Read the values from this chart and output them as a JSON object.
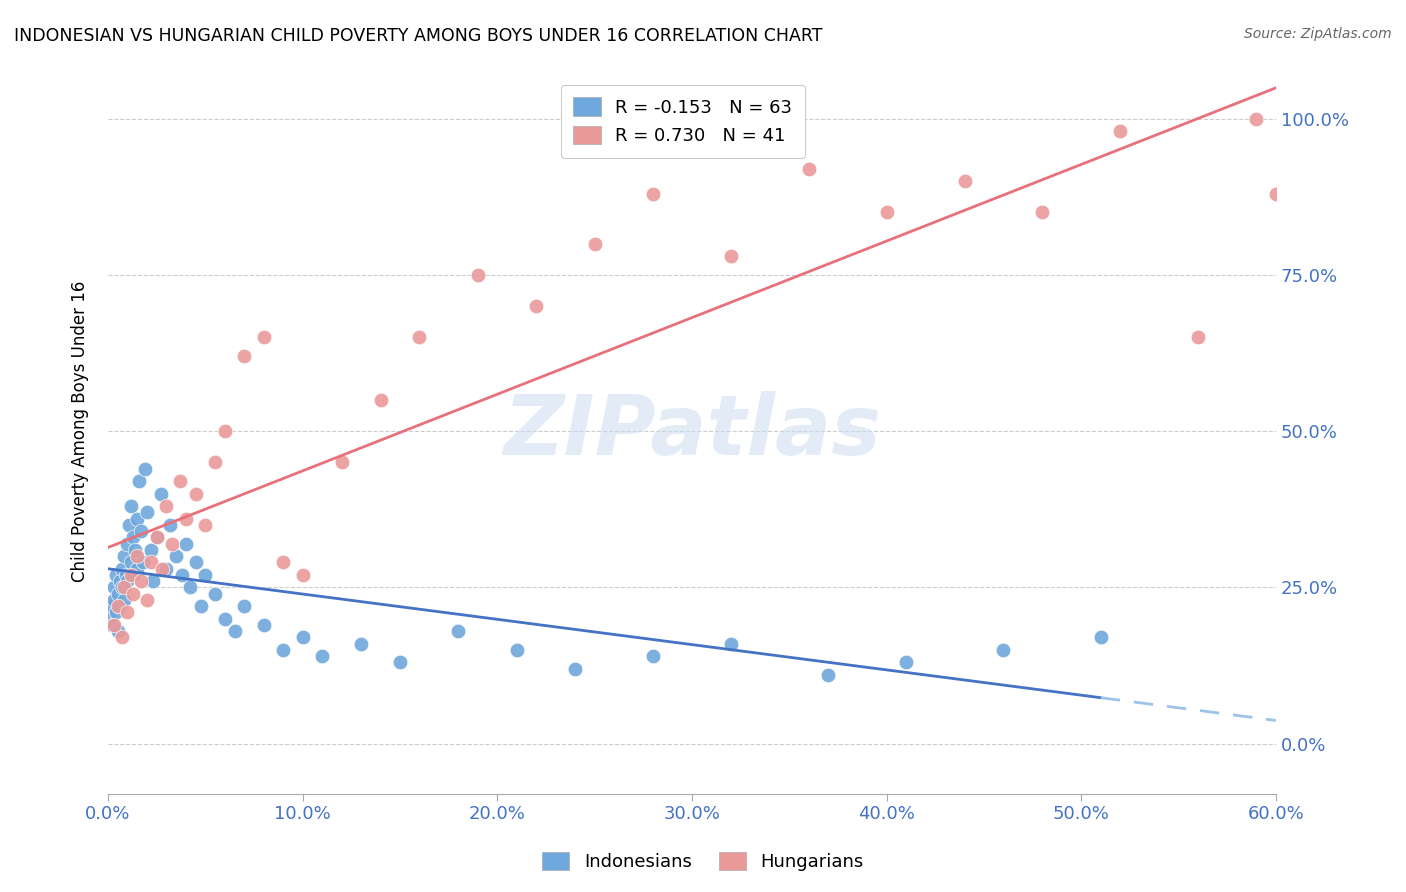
{
  "title": "INDONESIAN VS HUNGARIAN CHILD POVERTY AMONG BOYS UNDER 16 CORRELATION CHART",
  "source": "Source: ZipAtlas.com",
  "ylabel": "Child Poverty Among Boys Under 16",
  "xlim": [
    0.0,
    0.6
  ],
  "ylim": [
    -0.08,
    1.08
  ],
  "indonesian_color": "#6fa8dc",
  "hungarian_color": "#ea9999",
  "indonesian_line_color": "#4472c4",
  "indonesian_dash_color": "#9dc3e6",
  "hungarian_line_color": "#e8707a",
  "indonesian_R": -0.153,
  "indonesian_N": 63,
  "hungarian_R": 0.73,
  "hungarian_N": 41,
  "watermark": "ZIPatlas",
  "legend_labels": [
    "Indonesians",
    "Hungarians"
  ],
  "x_tick_vals": [
    0.0,
    0.1,
    0.2,
    0.3,
    0.4,
    0.5,
    0.6
  ],
  "x_tick_labels": [
    "0.0%",
    "10.0%",
    "20.0%",
    "30.0%",
    "40.0%",
    "50.0%",
    "60.0%"
  ],
  "y_tick_vals": [
    0.0,
    0.25,
    0.5,
    0.75,
    1.0
  ],
  "y_tick_labels": [
    "0.0%",
    "25.0%",
    "50.0%",
    "75.0%",
    "100.0%"
  ],
  "indonesian_x": [
    0.001,
    0.002,
    0.002,
    0.003,
    0.003,
    0.004,
    0.004,
    0.005,
    0.005,
    0.006,
    0.006,
    0.007,
    0.007,
    0.008,
    0.008,
    0.009,
    0.01,
    0.01,
    0.011,
    0.012,
    0.012,
    0.013,
    0.013,
    0.014,
    0.015,
    0.015,
    0.016,
    0.017,
    0.018,
    0.019,
    0.02,
    0.022,
    0.023,
    0.025,
    0.027,
    0.03,
    0.032,
    0.035,
    0.038,
    0.04,
    0.042,
    0.045,
    0.048,
    0.05,
    0.055,
    0.06,
    0.065,
    0.07,
    0.08,
    0.09,
    0.1,
    0.11,
    0.13,
    0.15,
    0.18,
    0.21,
    0.24,
    0.28,
    0.32,
    0.37,
    0.41,
    0.46,
    0.51
  ],
  "indonesian_y": [
    0.2,
    0.22,
    0.19,
    0.25,
    0.23,
    0.21,
    0.27,
    0.24,
    0.18,
    0.26,
    0.22,
    0.28,
    0.25,
    0.3,
    0.23,
    0.27,
    0.32,
    0.26,
    0.35,
    0.29,
    0.38,
    0.33,
    0.27,
    0.31,
    0.36,
    0.28,
    0.42,
    0.34,
    0.29,
    0.44,
    0.37,
    0.31,
    0.26,
    0.33,
    0.4,
    0.28,
    0.35,
    0.3,
    0.27,
    0.32,
    0.25,
    0.29,
    0.22,
    0.27,
    0.24,
    0.2,
    0.18,
    0.22,
    0.19,
    0.15,
    0.17,
    0.14,
    0.16,
    0.13,
    0.18,
    0.15,
    0.12,
    0.14,
    0.16,
    0.11,
    0.13,
    0.15,
    0.17
  ],
  "hungarian_x": [
    0.003,
    0.005,
    0.007,
    0.008,
    0.01,
    0.012,
    0.013,
    0.015,
    0.017,
    0.02,
    0.022,
    0.025,
    0.028,
    0.03,
    0.033,
    0.037,
    0.04,
    0.045,
    0.05,
    0.055,
    0.06,
    0.07,
    0.08,
    0.09,
    0.1,
    0.12,
    0.14,
    0.16,
    0.19,
    0.22,
    0.25,
    0.28,
    0.32,
    0.36,
    0.4,
    0.44,
    0.48,
    0.52,
    0.56,
    0.59,
    0.6
  ],
  "hungarian_y": [
    0.19,
    0.22,
    0.17,
    0.25,
    0.21,
    0.27,
    0.24,
    0.3,
    0.26,
    0.23,
    0.29,
    0.33,
    0.28,
    0.38,
    0.32,
    0.42,
    0.36,
    0.4,
    0.35,
    0.45,
    0.5,
    0.62,
    0.65,
    0.29,
    0.27,
    0.45,
    0.55,
    0.65,
    0.75,
    0.7,
    0.8,
    0.88,
    0.78,
    0.92,
    0.85,
    0.9,
    0.85,
    0.98,
    0.65,
    1.0,
    0.88
  ]
}
